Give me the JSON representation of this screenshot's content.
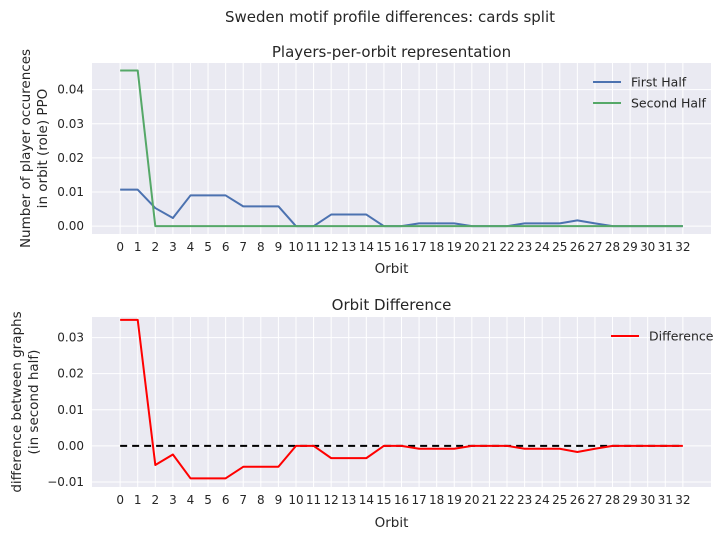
{
  "figure": {
    "suptitle": "Sweden motif profile differences: cards split"
  },
  "chart_data": [
    {
      "type": "line",
      "title": "Players-per-orbit representation",
      "xlabel": "Orbit",
      "ylabel_lines": [
        "Number of player occurences",
        "in orbit (role) PPO"
      ],
      "x": [
        0,
        1,
        2,
        3,
        4,
        5,
        6,
        7,
        8,
        9,
        10,
        11,
        12,
        13,
        14,
        15,
        16,
        17,
        18,
        19,
        20,
        21,
        22,
        23,
        24,
        25,
        26,
        27,
        28,
        29,
        30,
        31,
        32
      ],
      "ylim": [
        -0.0023,
        0.0478
      ],
      "yticks": [
        0.0,
        0.01,
        0.02,
        0.03,
        0.04
      ],
      "ytick_labels": [
        "0.00",
        "0.01",
        "0.02",
        "0.03",
        "0.04"
      ],
      "grid": true,
      "legend": "top-right",
      "series": [
        {
          "name": "First Half",
          "color": "#4c72b0",
          "values": [
            0.0107,
            0.0107,
            0.0053,
            0.0024,
            0.009,
            0.009,
            0.009,
            0.0058,
            0.0058,
            0.0058,
            0.0,
            0.0,
            0.0034,
            0.0034,
            0.0034,
            0.0,
            0.0,
            0.0008,
            0.0008,
            0.0008,
            0.0,
            0.0,
            0.0,
            0.0008,
            0.0008,
            0.0008,
            0.0017,
            0.0008,
            0.0,
            0.0,
            0.0,
            0.0,
            0.0
          ]
        },
        {
          "name": "Second Half",
          "color": "#55a868",
          "values": [
            0.0456,
            0.0456,
            0.0,
            0.0,
            0.0,
            0.0,
            0.0,
            0.0,
            0.0,
            0.0,
            0.0,
            0.0,
            0.0,
            0.0,
            0.0,
            0.0,
            0.0,
            0.0,
            0.0,
            0.0,
            0.0,
            0.0,
            0.0,
            0.0,
            0.0,
            0.0,
            0.0,
            0.0,
            0.0,
            0.0,
            0.0,
            0.0,
            0.0
          ]
        }
      ]
    },
    {
      "type": "line",
      "title": "Orbit Difference",
      "xlabel": "Orbit",
      "ylabel_lines": [
        "difference between graphs",
        "(in second half)"
      ],
      "x": [
        0,
        1,
        2,
        3,
        4,
        5,
        6,
        7,
        8,
        9,
        10,
        11,
        12,
        13,
        14,
        15,
        16,
        17,
        18,
        19,
        20,
        21,
        22,
        23,
        24,
        25,
        26,
        27,
        28,
        29,
        30,
        31,
        32
      ],
      "ylim": [
        -0.0114,
        0.0357
      ],
      "yticks": [
        -0.01,
        0.0,
        0.01,
        0.02,
        0.03
      ],
      "ytick_labels": [
        "−0.01",
        "0.00",
        "0.01",
        "0.02",
        "0.03"
      ],
      "grid": true,
      "legend": "top-right",
      "baseline": {
        "y": 0.0,
        "color": "#000000",
        "style": "dashed"
      },
      "series": [
        {
          "name": "Difference",
          "color": "#ff0000",
          "values": [
            0.0349,
            0.0349,
            -0.0053,
            -0.0024,
            -0.009,
            -0.009,
            -0.009,
            -0.0058,
            -0.0058,
            -0.0058,
            0.0,
            0.0,
            -0.0034,
            -0.0034,
            -0.0034,
            0.0,
            0.0,
            -0.0008,
            -0.0008,
            -0.0008,
            0.0,
            0.0,
            0.0,
            -0.0008,
            -0.0008,
            -0.0008,
            -0.0017,
            -0.0008,
            0.0,
            0.0,
            0.0,
            0.0,
            0.0
          ]
        }
      ]
    }
  ]
}
